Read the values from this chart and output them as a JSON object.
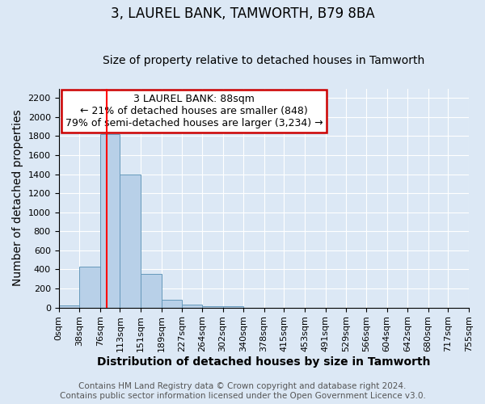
{
  "title": "3, LAUREL BANK, TAMWORTH, B79 8BA",
  "subtitle": "Size of property relative to detached houses in Tamworth",
  "xlabel": "Distribution of detached houses by size in Tamworth",
  "ylabel": "Number of detached properties",
  "bin_edges": [
    0,
    38,
    76,
    113,
    151,
    189,
    227,
    264,
    302,
    340,
    378,
    415,
    453,
    491,
    529,
    566,
    604,
    642,
    680,
    717,
    755
  ],
  "bar_heights": [
    20,
    430,
    1820,
    1400,
    350,
    80,
    30,
    15,
    15,
    0,
    0,
    0,
    0,
    0,
    0,
    0,
    0,
    0,
    0,
    0
  ],
  "bar_color": "#b8d0e8",
  "bar_edge_color": "#6699bb",
  "red_line_x": 88,
  "annotation_line1": "3 LAUREL BANK: 88sqm",
  "annotation_line2": "← 21% of detached houses are smaller (848)",
  "annotation_line3": "79% of semi-detached houses are larger (3,234) →",
  "annotation_box_color": "#ffffff",
  "annotation_box_edge": "#cc0000",
  "ylim": [
    0,
    2300
  ],
  "yticks": [
    0,
    200,
    400,
    600,
    800,
    1000,
    1200,
    1400,
    1600,
    1800,
    2000,
    2200
  ],
  "tick_labels": [
    "0sqm",
    "38sqm",
    "76sqm",
    "113sqm",
    "151sqm",
    "189sqm",
    "227sqm",
    "264sqm",
    "302sqm",
    "340sqm",
    "378sqm",
    "415sqm",
    "453sqm",
    "491sqm",
    "529sqm",
    "566sqm",
    "604sqm",
    "642sqm",
    "680sqm",
    "717sqm",
    "755sqm"
  ],
  "footer1": "Contains HM Land Registry data © Crown copyright and database right 2024.",
  "footer2": "Contains public sector information licensed under the Open Government Licence v3.0.",
  "background_color": "#dce8f5",
  "plot_bg_color": "#dce8f5",
  "title_fontsize": 12,
  "subtitle_fontsize": 10,
  "axis_label_fontsize": 10,
  "tick_fontsize": 8,
  "footer_fontsize": 7.5,
  "annotation_fontsize": 9
}
